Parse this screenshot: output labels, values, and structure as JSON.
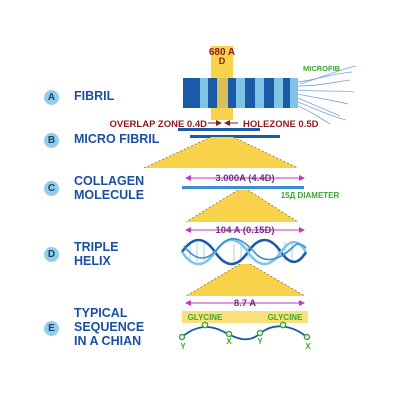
{
  "labels": {
    "a": {
      "letter": "A",
      "line1": "FIBRIL"
    },
    "b": {
      "letter": "B",
      "line1": "MICRO FIBRIL"
    },
    "c": {
      "letter": "C",
      "line1": "COLLAGEN",
      "line2": "MOLECULE"
    },
    "d": {
      "letter": "D",
      "line1": "TRIPLE",
      "line2": "HELIX"
    },
    "e": {
      "letter": "E",
      "line1": "TYPICAL",
      "line2": "SEQUENCE",
      "line3": "IN A CHIAN"
    }
  },
  "annotations": {
    "period_value": "680 A",
    "period_unit": "D",
    "microfib": "MICROFIB",
    "overlap_zone": "OVERLAP ZONE 0.4D",
    "hole_zone": "HOLEZONE 0.5D",
    "molecule_length": "3.000A (4.4D)",
    "diameter": "15Д DIAMETER",
    "helix_pitch": "104 A (0.15D)",
    "residue_spacing": "8.7 A",
    "glycine_left": "GLYCINE",
    "glycine_right": "GLYCINE",
    "residue_y1": "Y",
    "residue_x1": "X",
    "residue_y2": "Y",
    "residue_x2": "X"
  },
  "colors": {
    "label_blue": "#1d4fa0",
    "badge": "#8fd0e8",
    "fibril_dark": "#1b5aa6",
    "fibril_light": "#7fc4e4",
    "highlight": "#f8d24a",
    "annotation_red": "#8b1a1a",
    "magenta": "#c03ab5",
    "green": "#3fa535"
  }
}
